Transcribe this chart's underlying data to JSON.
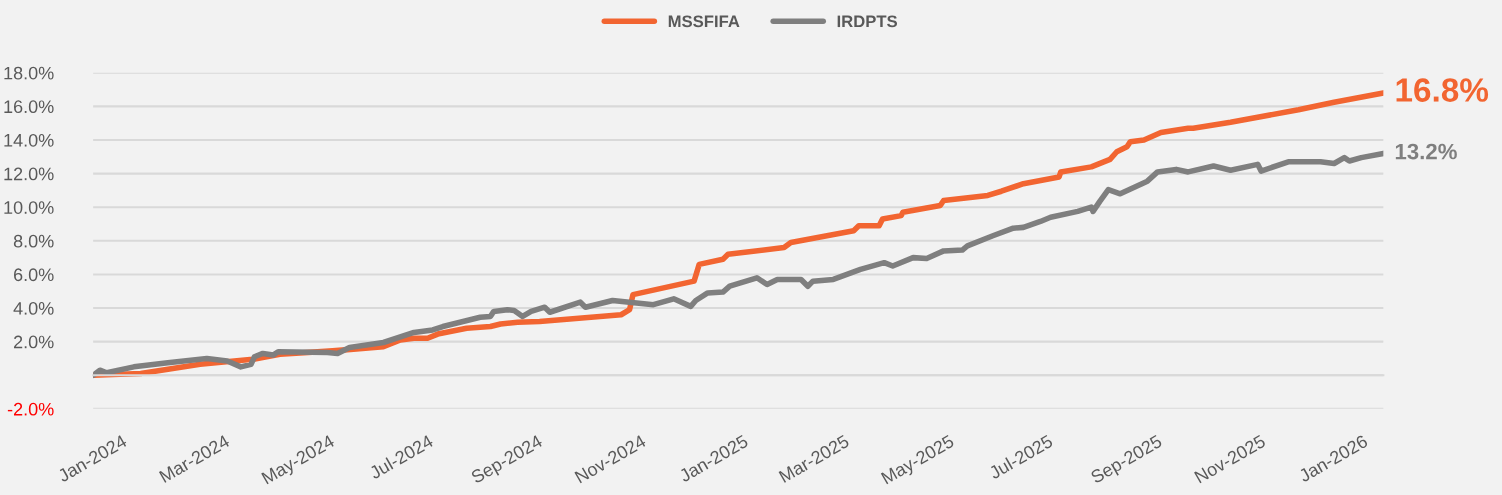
{
  "chart_data": {
    "type": "line",
    "xlim": [
      "2024-01-01",
      "2026-01-30"
    ],
    "xticks": [
      {
        "value": "2024-01-01",
        "label": "Jan-2024"
      },
      {
        "value": "2024-03-01",
        "label": "Mar-2024"
      },
      {
        "value": "2024-05-01",
        "label": "May-2024"
      },
      {
        "value": "2024-07-01",
        "label": "Jul-2024"
      },
      {
        "value": "2024-09-01",
        "label": "Sep-2024"
      },
      {
        "value": "2024-11-01",
        "label": "Nov-2024"
      },
      {
        "value": "2025-01-01",
        "label": "Jan-2025"
      },
      {
        "value": "2025-03-01",
        "label": "Mar-2025"
      },
      {
        "value": "2025-05-01",
        "label": "May-2025"
      },
      {
        "value": "2025-07-01",
        "label": "Jul-2025"
      },
      {
        "value": "2025-09-01",
        "label": "Sep-2025"
      },
      {
        "value": "2025-11-01",
        "label": "Nov-2025"
      },
      {
        "value": "2026-01-01",
        "label": "Jan-2026"
      }
    ],
    "ylim": [
      -2,
      18
    ],
    "yticks": [
      {
        "value": -2,
        "label": "-2.0%"
      },
      {
        "value": 0,
        "label": null
      },
      {
        "value": 2,
        "label": "2.0%"
      },
      {
        "value": 4,
        "label": "4.0%"
      },
      {
        "value": 6,
        "label": "6.0%"
      },
      {
        "value": 8,
        "label": "8.0%"
      },
      {
        "value": 10,
        "label": "10.0%"
      },
      {
        "value": 12,
        "label": "12.0%"
      },
      {
        "value": 14,
        "label": "14.0%"
      },
      {
        "value": 16,
        "label": "16.0%"
      },
      {
        "value": 18,
        "label": "18.0%"
      }
    ],
    "grid": "y",
    "legend": "top",
    "marker": "none",
    "line_style": "solid",
    "series": [
      {
        "name": "MSSFIFA",
        "color": "#f26531",
        "x": [
          "2024-01-01",
          "2024-01-29",
          "2024-03-04",
          "2024-04-04",
          "2024-04-20",
          "2024-05-21",
          "2024-06-20",
          "2024-06-30",
          "2024-07-08",
          "2024-07-16",
          "2024-07-22",
          "2024-08-08",
          "2024-08-22",
          "2024-08-28",
          "2024-09-07",
          "2024-09-20",
          "2024-11-07",
          "2024-11-12",
          "2024-11-14",
          "2024-12-20",
          "2024-12-23",
          "2025-01-06",
          "2025-01-09",
          "2025-02-11",
          "2025-02-15",
          "2025-03-24",
          "2025-03-27",
          "2025-04-08",
          "2025-04-10",
          "2025-04-21",
          "2025-04-22",
          "2025-05-14",
          "2025-05-16",
          "2025-06-11",
          "2025-06-19",
          "2025-07-02",
          "2025-07-23",
          "2025-07-24",
          "2025-08-11",
          "2025-08-22",
          "2025-08-26",
          "2025-09-01",
          "2025-09-03",
          "2025-09-11",
          "2025-09-21",
          "2025-10-07",
          "2025-10-10",
          "2025-11-01",
          "2025-12-11",
          "2026-01-01",
          "2026-01-30"
        ],
        "values": [
          0,
          0.1,
          0.65,
          0.95,
          1.25,
          1.45,
          1.7,
          2.1,
          2.2,
          2.2,
          2.45,
          2.8,
          2.9,
          3.05,
          3.15,
          3.2,
          3.6,
          3.9,
          4.8,
          5.6,
          6.6,
          6.9,
          7.2,
          7.6,
          7.9,
          8.6,
          8.9,
          8.9,
          9.3,
          9.5,
          9.7,
          10.1,
          10.4,
          10.7,
          10.95,
          11.4,
          11.8,
          12.1,
          12.4,
          12.85,
          13.3,
          13.6,
          13.9,
          14.0,
          14.45,
          14.7,
          14.7,
          15.05,
          15.8,
          16.25,
          16.8
        ]
      },
      {
        "name": "IRDPTS",
        "color": "#7f7f7f",
        "x": [
          "2024-01-01",
          "2024-01-05",
          "2024-01-09",
          "2024-01-25",
          "2024-02-14",
          "2024-03-08",
          "2024-03-20",
          "2024-03-28",
          "2024-04-03",
          "2024-04-05",
          "2024-04-10",
          "2024-04-16",
          "2024-04-19",
          "2024-05-18",
          "2024-05-24",
          "2024-05-31",
          "2024-06-20",
          "2024-07-08",
          "2024-07-19",
          "2024-07-25",
          "2024-08-16",
          "2024-08-22",
          "2024-08-24",
          "2024-09-01",
          "2024-09-05",
          "2024-09-10",
          "2024-09-15",
          "2024-09-23",
          "2024-09-26",
          "2024-10-14",
          "2024-10-17",
          "2024-11-02",
          "2024-11-26",
          "2024-12-08",
          "2024-12-18",
          "2024-12-21",
          "2024-12-28",
          "2025-01-06",
          "2025-01-10",
          "2025-01-26",
          "2025-02-01",
          "2025-02-07",
          "2025-02-21",
          "2025-02-25",
          "2025-02-28",
          "2025-03-12",
          "2025-03-28",
          "2025-04-11",
          "2025-04-16",
          "2025-04-28",
          "2025-05-06",
          "2025-05-16",
          "2025-05-27",
          "2025-05-30",
          "2025-06-14",
          "2025-06-26",
          "2025-07-02",
          "2025-07-12",
          "2025-07-18",
          "2025-08-03",
          "2025-08-11",
          "2025-08-12",
          "2025-08-16",
          "2025-08-21",
          "2025-08-28",
          "2025-09-13",
          "2025-09-19",
          "2025-09-30",
          "2025-10-07",
          "2025-10-22",
          "2025-11-01",
          "2025-11-17",
          "2025-11-19",
          "2025-12-05",
          "2025-12-24",
          "2026-01-01",
          "2026-01-07",
          "2026-01-10",
          "2026-01-17",
          "2026-01-30"
        ],
        "values": [
          0,
          0.3,
          0.15,
          0.5,
          0.75,
          1.0,
          0.85,
          0.5,
          0.65,
          1.1,
          1.3,
          1.2,
          1.4,
          1.35,
          1.3,
          1.65,
          1.95,
          2.55,
          2.7,
          2.9,
          3.45,
          3.5,
          3.8,
          3.9,
          3.85,
          3.5,
          3.8,
          4.05,
          3.75,
          4.35,
          4.05,
          4.45,
          4.2,
          4.55,
          4.1,
          4.45,
          4.9,
          4.95,
          5.3,
          5.8,
          5.4,
          5.7,
          5.7,
          5.3,
          5.6,
          5.7,
          6.3,
          6.7,
          6.5,
          7.0,
          6.95,
          7.4,
          7.45,
          7.7,
          8.3,
          8.75,
          8.8,
          9.15,
          9.4,
          9.75,
          10.0,
          9.75,
          10.35,
          11.05,
          10.8,
          11.55,
          12.1,
          12.25,
          12.1,
          12.45,
          12.2,
          12.55,
          12.15,
          12.7,
          12.7,
          12.6,
          12.95,
          12.75,
          12.95,
          13.2
        ]
      }
    ],
    "annotations": [
      {
        "text": "16.8%",
        "x": "2026-01-30",
        "y": 16.8
      },
      {
        "text": "13.2%",
        "x": "2026-01-30",
        "y": 13.2
      }
    ]
  }
}
